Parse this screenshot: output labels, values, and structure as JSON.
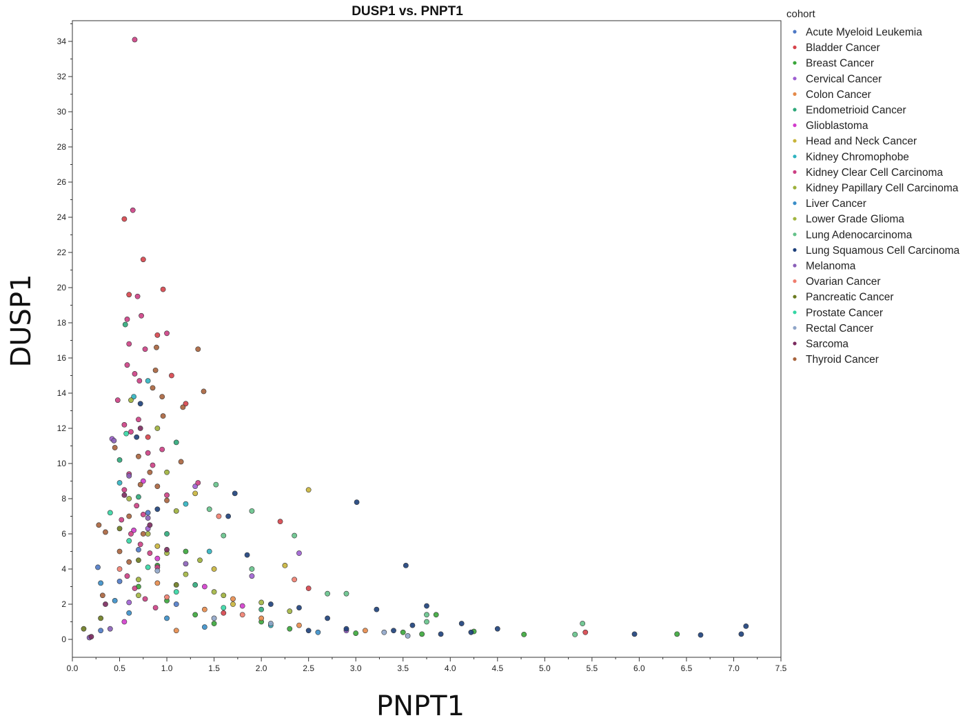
{
  "chart_data": {
    "type": "scatter",
    "title": "DUSP1 vs. PNPT1",
    "xlabel": "PNPT1",
    "ylabel": "DUSP1",
    "xlim": [
      0,
      7.5
    ],
    "ylim": [
      -1,
      35
    ],
    "x_ticks": [
      "0.0",
      "0.5",
      "1.0",
      "1.5",
      "2.0",
      "2.5",
      "3.0",
      "3.5",
      "4.0",
      "4.5",
      "5.0",
      "5.5",
      "6.0",
      "6.5",
      "7.0",
      "7.5"
    ],
    "y_ticks": [
      "0",
      "2",
      "4",
      "6",
      "8",
      "10",
      "12",
      "14",
      "16",
      "18",
      "20",
      "22",
      "24",
      "26",
      "28",
      "30",
      "32",
      "34"
    ],
    "grid": false,
    "legend_title": "cohort",
    "legend_position": "right",
    "series": [
      {
        "name": "Acute Myeloid Leukemia",
        "color": "#4e79c5",
        "points": [
          [
            0.3,
            0.5
          ],
          [
            0.5,
            3.3
          ],
          [
            0.7,
            5.1
          ],
          [
            0.27,
            4.1
          ],
          [
            0.8,
            7.2
          ],
          [
            1.1,
            2.0
          ]
        ]
      },
      {
        "name": "Bladder Cancer",
        "color": "#d6434a",
        "points": [
          [
            0.6,
            19.6
          ],
          [
            0.55,
            23.9
          ],
          [
            0.75,
            21.6
          ],
          [
            0.96,
            19.9
          ],
          [
            1.05,
            15.0
          ],
          [
            1.2,
            13.4
          ],
          [
            0.9,
            17.3
          ],
          [
            0.8,
            11.5
          ],
          [
            2.2,
            6.7
          ],
          [
            2.5,
            2.9
          ],
          [
            5.43,
            0.4
          ],
          [
            1.6,
            1.5
          ]
        ]
      },
      {
        "name": "Breast Cancer",
        "color": "#3aa63a",
        "points": [
          [
            0.7,
            3.0
          ],
          [
            1.0,
            2.2
          ],
          [
            1.3,
            1.4
          ],
          [
            1.5,
            0.9
          ],
          [
            2.0,
            1.0
          ],
          [
            2.3,
            0.6
          ],
          [
            3.5,
            0.4
          ],
          [
            3.7,
            0.3
          ],
          [
            3.85,
            1.4
          ],
          [
            4.25,
            0.45
          ],
          [
            4.78,
            0.28
          ],
          [
            6.4,
            0.3
          ],
          [
            0.9,
            4.2
          ],
          [
            1.2,
            5.0
          ],
          [
            3.0,
            0.35
          ]
        ]
      },
      {
        "name": "Cervical Cancer",
        "color": "#9e5fd1",
        "points": [
          [
            0.42,
            11.4
          ],
          [
            0.8,
            6.3
          ],
          [
            1.3,
            8.7
          ],
          [
            2.4,
            4.9
          ],
          [
            1.9,
            3.6
          ],
          [
            0.6,
            2.1
          ],
          [
            2.9,
            0.5
          ]
        ]
      },
      {
        "name": "Colon Cancer",
        "color": "#e58a4a",
        "points": [
          [
            0.9,
            3.2
          ],
          [
            1.4,
            1.7
          ],
          [
            2.0,
            1.2
          ],
          [
            2.4,
            0.8
          ],
          [
            3.1,
            0.5
          ],
          [
            1.7,
            2.3
          ],
          [
            1.1,
            0.5
          ]
        ]
      },
      {
        "name": "Endometrioid Cancer",
        "color": "#2ea87a",
        "points": [
          [
            0.56,
            17.9
          ],
          [
            0.5,
            10.2
          ],
          [
            0.7,
            8.1
          ],
          [
            1.0,
            6.0
          ],
          [
            1.3,
            3.1
          ],
          [
            2.0,
            1.7
          ],
          [
            1.1,
            11.2
          ]
        ]
      },
      {
        "name": "Glioblastoma",
        "color": "#d23ccc",
        "points": [
          [
            0.65,
            6.2
          ],
          [
            0.9,
            4.6
          ],
          [
            1.4,
            3.0
          ],
          [
            0.55,
            1.0
          ],
          [
            1.8,
            1.9
          ],
          [
            0.75,
            9.0
          ]
        ]
      },
      {
        "name": "Head and Neck Cancer",
        "color": "#c8b43a",
        "points": [
          [
            2.5,
            8.5
          ],
          [
            1.3,
            8.3
          ],
          [
            2.25,
            4.2
          ],
          [
            1.7,
            2.0
          ],
          [
            0.9,
            5.3
          ],
          [
            1.5,
            4.0
          ]
        ]
      },
      {
        "name": "Kidney Chromophobe",
        "color": "#2fb3c0",
        "points": [
          [
            0.8,
            14.7
          ],
          [
            0.65,
            13.8
          ],
          [
            1.2,
            7.7
          ],
          [
            1.45,
            5.0
          ],
          [
            0.5,
            8.9
          ],
          [
            2.1,
            0.8
          ]
        ]
      },
      {
        "name": "Kidney Clear Cell Carcinoma",
        "color": "#cc3f84",
        "points": [
          [
            0.66,
            34.1
          ],
          [
            0.64,
            24.4
          ],
          [
            0.73,
            18.4
          ],
          [
            0.58,
            18.2
          ],
          [
            0.6,
            16.8
          ],
          [
            0.69,
            19.5
          ],
          [
            0.77,
            16.5
          ],
          [
            0.58,
            15.6
          ],
          [
            0.66,
            15.1
          ],
          [
            0.71,
            14.7
          ],
          [
            0.48,
            13.6
          ],
          [
            0.55,
            12.2
          ],
          [
            0.62,
            11.8
          ],
          [
            0.7,
            12.5
          ],
          [
            0.8,
            10.6
          ],
          [
            0.85,
            9.9
          ],
          [
            0.6,
            9.4
          ],
          [
            0.55,
            8.5
          ],
          [
            0.68,
            7.6
          ],
          [
            0.75,
            7.1
          ],
          [
            0.52,
            6.8
          ],
          [
            0.62,
            6.0
          ],
          [
            0.72,
            5.4
          ],
          [
            0.82,
            4.9
          ],
          [
            0.9,
            4.1
          ],
          [
            0.58,
            3.6
          ],
          [
            0.66,
            2.9
          ],
          [
            0.77,
            2.3
          ],
          [
            0.88,
            1.8
          ],
          [
            1.0,
            8.2
          ],
          [
            0.95,
            10.8
          ],
          [
            1.0,
            17.4
          ],
          [
            1.33,
            8.9
          ]
        ]
      },
      {
        "name": "Kidney Papillary Cell Carcinoma",
        "color": "#9db03a",
        "points": [
          [
            0.62,
            13.6
          ],
          [
            0.9,
            12.0
          ],
          [
            1.0,
            9.5
          ],
          [
            1.1,
            7.3
          ],
          [
            1.35,
            4.5
          ],
          [
            0.7,
            3.4
          ],
          [
            1.6,
            2.5
          ]
        ]
      },
      {
        "name": "Liver Cancer",
        "color": "#3a8ec8",
        "points": [
          [
            0.3,
            3.2
          ],
          [
            0.45,
            2.2
          ],
          [
            0.6,
            1.5
          ],
          [
            1.0,
            1.2
          ],
          [
            1.4,
            0.7
          ],
          [
            2.6,
            0.4
          ]
        ]
      },
      {
        "name": "Lower Grade Glioma",
        "color": "#a2b540",
        "points": [
          [
            0.6,
            8.0
          ],
          [
            0.8,
            6.0
          ],
          [
            1.0,
            4.9
          ],
          [
            1.2,
            3.7
          ],
          [
            1.5,
            2.7
          ],
          [
            2.0,
            2.1
          ],
          [
            2.3,
            1.6
          ],
          [
            0.7,
            2.5
          ]
        ]
      },
      {
        "name": "Lung Adenocarcinoma",
        "color": "#65c28a",
        "points": [
          [
            1.52,
            8.8
          ],
          [
            1.9,
            7.3
          ],
          [
            2.35,
            5.9
          ],
          [
            1.6,
            5.9
          ],
          [
            2.7,
            2.6
          ],
          [
            2.9,
            2.6
          ],
          [
            3.75,
            1.4
          ],
          [
            3.75,
            1.0
          ],
          [
            5.4,
            0.9
          ],
          [
            5.32,
            0.28
          ],
          [
            1.45,
            7.4
          ],
          [
            1.9,
            4.0
          ]
        ]
      },
      {
        "name": "Lung Squamous Cell Carcinoma",
        "color": "#1c3f7a",
        "points": [
          [
            1.72,
            8.3
          ],
          [
            3.01,
            7.8
          ],
          [
            1.65,
            7.0
          ],
          [
            3.53,
            4.2
          ],
          [
            1.85,
            4.8
          ],
          [
            3.75,
            1.9
          ],
          [
            3.22,
            1.7
          ],
          [
            4.12,
            0.9
          ],
          [
            4.5,
            0.6
          ],
          [
            4.22,
            0.4
          ],
          [
            5.95,
            0.3
          ],
          [
            6.65,
            0.25
          ],
          [
            7.13,
            0.75
          ],
          [
            7.08,
            0.3
          ],
          [
            3.6,
            0.8
          ],
          [
            3.4,
            0.5
          ],
          [
            2.7,
            1.2
          ],
          [
            2.4,
            1.8
          ],
          [
            2.1,
            2.0
          ],
          [
            0.72,
            13.4
          ],
          [
            0.68,
            11.5
          ],
          [
            0.9,
            7.4
          ],
          [
            3.9,
            0.3
          ],
          [
            2.9,
            0.6
          ],
          [
            2.5,
            0.5
          ]
        ]
      },
      {
        "name": "Melanoma",
        "color": "#8a5fb8",
        "points": [
          [
            0.44,
            11.3
          ],
          [
            0.6,
            9.3
          ],
          [
            0.8,
            6.9
          ],
          [
            1.2,
            4.3
          ],
          [
            0.4,
            0.6
          ],
          [
            0.18,
            0.1
          ]
        ]
      },
      {
        "name": "Ovarian Cancer",
        "color": "#ef7d6e",
        "points": [
          [
            2.35,
            3.4
          ],
          [
            1.55,
            7.0
          ],
          [
            1.0,
            2.4
          ],
          [
            1.8,
            1.4
          ],
          [
            0.5,
            4.0
          ]
        ]
      },
      {
        "name": "Pancreatic Cancer",
        "color": "#6b7a1f",
        "points": [
          [
            0.5,
            6.3
          ],
          [
            0.7,
            4.5
          ],
          [
            1.1,
            3.1
          ],
          [
            0.3,
            1.2
          ],
          [
            0.12,
            0.6
          ]
        ]
      },
      {
        "name": "Prostate Cancer",
        "color": "#35d6a4",
        "points": [
          [
            0.57,
            11.7
          ],
          [
            0.4,
            7.2
          ],
          [
            0.6,
            5.6
          ],
          [
            0.8,
            4.1
          ],
          [
            1.1,
            2.7
          ],
          [
            1.6,
            1.8
          ]
        ]
      },
      {
        "name": "Rectal Cancer",
        "color": "#8fa5c8",
        "points": [
          [
            0.9,
            3.9
          ],
          [
            1.5,
            1.2
          ],
          [
            2.1,
            0.9
          ],
          [
            3.3,
            0.4
          ],
          [
            3.55,
            0.2
          ]
        ]
      },
      {
        "name": "Sarcoma",
        "color": "#7a2a5e",
        "points": [
          [
            0.72,
            12.0
          ],
          [
            0.55,
            8.2
          ],
          [
            0.82,
            6.5
          ],
          [
            0.35,
            2.0
          ],
          [
            0.2,
            0.15
          ],
          [
            1.0,
            5.1
          ]
        ]
      },
      {
        "name": "Thyroid Cancer",
        "color": "#a8633c",
        "points": [
          [
            1.33,
            16.5
          ],
          [
            1.39,
            14.1
          ],
          [
            0.89,
            16.6
          ],
          [
            0.85,
            14.3
          ],
          [
            1.17,
            13.2
          ],
          [
            0.95,
            13.8
          ],
          [
            0.45,
            10.9
          ],
          [
            0.7,
            10.4
          ],
          [
            0.82,
            9.5
          ],
          [
            0.9,
            8.7
          ],
          [
            1.0,
            7.9
          ],
          [
            0.6,
            7.0
          ],
          [
            0.75,
            6.0
          ],
          [
            0.28,
            6.5
          ],
          [
            0.35,
            6.1
          ],
          [
            0.5,
            5.0
          ],
          [
            0.6,
            4.4
          ],
          [
            0.32,
            2.5
          ],
          [
            1.15,
            10.1
          ],
          [
            0.88,
            15.3
          ],
          [
            0.96,
            12.7
          ],
          [
            0.72,
            8.8
          ]
        ]
      }
    ]
  }
}
